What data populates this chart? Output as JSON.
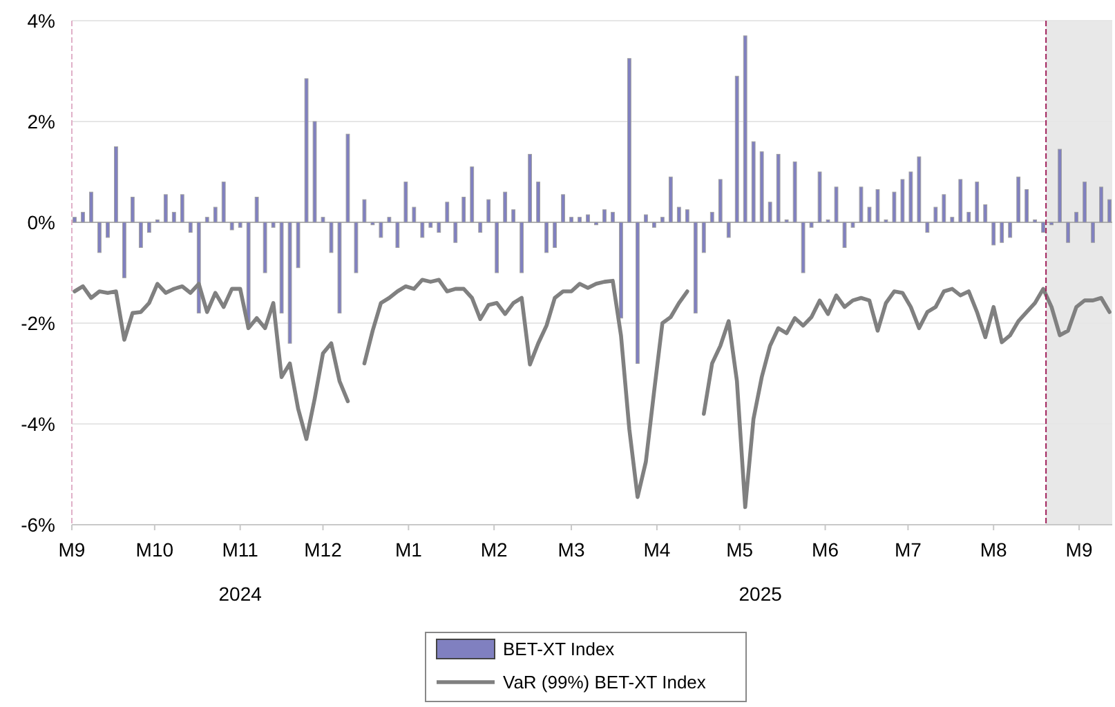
{
  "chart_data": {
    "type": "bar",
    "x": [
      "2024-09-02",
      "2024-09-05",
      "2024-09-08",
      "2024-09-11",
      "2024-09-14",
      "2024-09-17",
      "2024-09-20",
      "2024-09-23",
      "2024-09-26",
      "2024-09-29",
      "2024-10-02",
      "2024-10-05",
      "2024-10-08",
      "2024-10-11",
      "2024-10-14",
      "2024-10-17",
      "2024-10-20",
      "2024-10-23",
      "2024-10-26",
      "2024-10-29",
      "2024-11-01",
      "2024-11-04",
      "2024-11-07",
      "2024-11-10",
      "2024-11-13",
      "2024-11-16",
      "2024-11-19",
      "2024-11-22",
      "2024-11-25",
      "2024-11-28",
      "2024-12-01",
      "2024-12-04",
      "2024-12-07",
      "2024-12-10",
      "2024-12-13",
      "2024-12-16",
      "2024-12-19",
      "2024-12-22",
      "2024-12-25",
      "2024-12-28",
      "2024-12-31",
      "2025-01-03",
      "2025-01-06",
      "2025-01-09",
      "2025-01-12",
      "2025-01-15",
      "2025-01-18",
      "2025-01-21",
      "2025-01-24",
      "2025-01-27",
      "2025-01-30",
      "2025-02-02",
      "2025-02-05",
      "2025-02-08",
      "2025-02-11",
      "2025-02-14",
      "2025-02-17",
      "2025-02-20",
      "2025-02-23",
      "2025-02-26",
      "2025-03-01",
      "2025-03-04",
      "2025-03-07",
      "2025-03-10",
      "2025-03-13",
      "2025-03-16",
      "2025-03-19",
      "2025-03-22",
      "2025-03-25",
      "2025-03-28",
      "2025-03-31",
      "2025-04-03",
      "2025-04-06",
      "2025-04-09",
      "2025-04-12",
      "2025-04-15",
      "2025-04-18",
      "2025-04-21",
      "2025-04-24",
      "2025-04-27",
      "2025-04-30",
      "2025-05-03",
      "2025-05-06",
      "2025-05-09",
      "2025-05-12",
      "2025-05-15",
      "2025-05-18",
      "2025-05-21",
      "2025-05-24",
      "2025-05-27",
      "2025-05-30",
      "2025-06-02",
      "2025-06-05",
      "2025-06-08",
      "2025-06-11",
      "2025-06-14",
      "2025-06-17",
      "2025-06-20",
      "2025-06-23",
      "2025-06-26",
      "2025-06-29",
      "2025-07-02",
      "2025-07-05",
      "2025-07-08",
      "2025-07-11",
      "2025-07-14",
      "2025-07-17",
      "2025-07-20",
      "2025-07-23",
      "2025-07-26",
      "2025-07-29",
      "2025-08-01",
      "2025-08-04",
      "2025-08-07",
      "2025-08-10",
      "2025-08-13",
      "2025-08-16",
      "2025-08-19",
      "2025-08-22",
      "2025-08-25",
      "2025-08-28",
      "2025-08-31",
      "2025-09-03",
      "2025-09-06",
      "2025-09-09",
      "2025-09-12"
    ],
    "series": [
      {
        "name": "BET-XT Index",
        "color": "#8080c0",
        "values": [
          0.1,
          0.2,
          0.6,
          -0.6,
          -0.3,
          1.5,
          -1.1,
          0.5,
          -0.5,
          -0.2,
          0.05,
          0.55,
          0.2,
          0.55,
          -0.2,
          -1.8,
          0.1,
          0.3,
          0.8,
          -0.15,
          -0.1,
          -2.1,
          0.5,
          -1.0,
          -0.1,
          -1.8,
          -2.4,
          -0.9,
          2.85,
          2.0,
          0.1,
          -0.6,
          -1.8,
          1.75,
          -1.0,
          0.45,
          -0.05,
          -0.3,
          0.1,
          -0.5,
          0.8,
          0.3,
          -0.3,
          -0.1,
          -0.2,
          0.4,
          -0.4,
          0.5,
          1.1,
          -0.2,
          0.45,
          -1.0,
          0.6,
          0.25,
          -1.0,
          1.35,
          0.8,
          -0.6,
          -0.5,
          0.55,
          0.1,
          0.1,
          0.15,
          -0.05,
          0.25,
          0.2,
          -1.9,
          3.25,
          -2.8,
          0.15,
          -0.1,
          0.1,
          0.9,
          0.3,
          0.25,
          -1.8,
          -0.6,
          0.2,
          0.85,
          -0.3,
          2.9,
          3.7,
          1.6,
          1.4,
          0.4,
          1.35,
          0.05,
          1.2,
          -1.0,
          -0.1,
          1.0,
          0.05,
          0.7,
          -0.5,
          -0.1,
          0.7,
          0.3,
          0.65,
          0.05,
          0.6,
          0.85,
          1.0,
          1.3,
          -0.2,
          0.3,
          0.55,
          0.1,
          0.85,
          0.2,
          0.8,
          0.35,
          -0.45,
          -0.4,
          -0.3,
          0.9,
          0.65,
          0.05,
          -0.2,
          -0.05,
          1.45,
          -0.4,
          0.2,
          0.8,
          -0.4,
          0.7,
          0.45
        ]
      },
      {
        "name": "VaR (99%) BET-XT Index",
        "type": "line",
        "color": "#808080",
        "values": [
          -1.37,
          -1.27,
          -1.5,
          -1.37,
          -1.4,
          -1.37,
          -2.33,
          -1.8,
          -1.78,
          -1.6,
          -1.22,
          -1.4,
          -1.32,
          -1.27,
          -1.4,
          -1.22,
          -1.78,
          -1.4,
          -1.68,
          -1.32,
          -1.32,
          -2.1,
          -1.9,
          -2.1,
          -1.6,
          -3.07,
          -2.8,
          -3.7,
          -4.3,
          -3.5,
          -2.6,
          -2.4,
          -3.15,
          -3.55,
          null,
          -2.8,
          -2.15,
          -1.6,
          -1.5,
          -1.37,
          -1.27,
          -1.32,
          -1.14,
          -1.18,
          -1.14,
          -1.37,
          -1.32,
          -1.32,
          -1.5,
          -1.92,
          -1.64,
          -1.6,
          -1.82,
          -1.6,
          -1.5,
          -2.82,
          -2.4,
          -2.05,
          -1.5,
          -1.37,
          -1.37,
          -1.22,
          -1.3,
          -1.22,
          -1.18,
          -1.16,
          -2.25,
          -4.1,
          -5.45,
          -4.75,
          -3.35,
          -2.0,
          -1.88,
          -1.6,
          -1.37,
          null,
          -3.8,
          -2.8,
          -2.45,
          -1.96,
          -3.15,
          -5.65,
          -3.9,
          -3.07,
          -2.45,
          -2.1,
          -2.2,
          -1.9,
          -2.05,
          -1.88,
          -1.55,
          -1.82,
          -1.45,
          -1.68,
          -1.55,
          -1.5,
          -1.55,
          -2.15,
          -1.6,
          -1.37,
          -1.4,
          -1.68,
          -2.1,
          -1.78,
          -1.68,
          -1.37,
          -1.32,
          -1.45,
          -1.37,
          -1.78,
          -2.28,
          -1.68,
          -2.38,
          -2.24,
          -1.96,
          -1.78,
          -1.6,
          -1.32,
          -1.68,
          -2.24,
          -2.15,
          -1.68,
          -1.55,
          -1.55,
          -1.5,
          -1.78
        ]
      }
    ],
    "xlim": [
      "2024-09-01",
      "2025-09-13"
    ],
    "xticks": [
      {
        "value": "2024-09-01",
        "label": "M9"
      },
      {
        "value": "2024-10-01",
        "label": "M10"
      },
      {
        "value": "2024-11-01",
        "label": "M11"
      },
      {
        "value": "2024-12-01",
        "label": "M12"
      },
      {
        "value": "2025-01-01",
        "label": "M1"
      },
      {
        "value": "2025-02-01",
        "label": "M2"
      },
      {
        "value": "2025-03-01",
        "label": "M3"
      },
      {
        "value": "2025-04-01",
        "label": "M4"
      },
      {
        "value": "2025-05-01",
        "label": "M5"
      },
      {
        "value": "2025-06-01",
        "label": "M6"
      },
      {
        "value": "2025-07-01",
        "label": "M7"
      },
      {
        "value": "2025-08-01",
        "label": "M8"
      },
      {
        "value": "2025-09-01",
        "label": "M9"
      }
    ],
    "ylim": [
      -6,
      4
    ],
    "yticks": [
      {
        "value": -6,
        "label": "-6%"
      },
      {
        "value": -4,
        "label": "-4%"
      },
      {
        "value": -2,
        "label": "-2%"
      },
      {
        "value": 0,
        "label": "0%"
      },
      {
        "value": 2,
        "label": "2%"
      },
      {
        "value": 4,
        "label": "4%"
      }
    ],
    "annotations": [
      "2024",
      "2025"
    ],
    "ref_lines": [
      {
        "axis": "x",
        "value": "2024-09-01",
        "color": "#e0b0c8",
        "line_style": "dashed"
      },
      {
        "axis": "x",
        "value": "2025-08-20",
        "color": "#a0205a",
        "line_style": "dashed"
      }
    ],
    "bands": [
      {
        "axis": "x",
        "from": "2025-08-20",
        "to": "2025-09-13",
        "color": "#e8e8e8"
      }
    ],
    "grid": "y",
    "legend": "bottom"
  }
}
